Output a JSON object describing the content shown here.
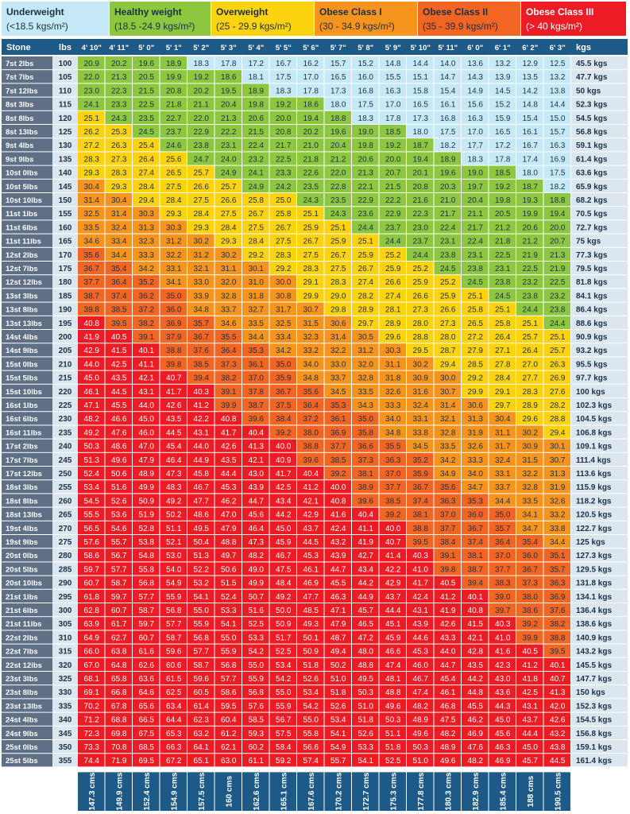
{
  "categories": [
    {
      "title": "Underweight",
      "range": "(<18.5 kgs/m²)",
      "color": "#c6e9f7",
      "text_color": "#1c2f45"
    },
    {
      "title": "Healthy weight",
      "range": "(18.5 -24.9 kgs/m²)",
      "color": "#8dc63f",
      "text_color": "#1c2f45"
    },
    {
      "title": "Overweight",
      "range": "(25 - 29.9 kgs/m²)",
      "color": "#fdd20e",
      "text_color": "#1c2f45"
    },
    {
      "title": "Obese Class I",
      "range": "(30 - 34.9 kgs/m²)",
      "color": "#f7941d",
      "text_color": "#1c2f45"
    },
    {
      "title": "Obese Class II",
      "range": "(35 - 39.9 kgs/m²)",
      "color": "#f26522",
      "text_color": "#1c2f45"
    },
    {
      "title": "Obese Class III",
      "range": "(> 40 kgs/m²)",
      "color": "#ed1c24",
      "text_color": "#ffffff"
    }
  ],
  "chart_data": {
    "type": "table",
    "header": {
      "stone": "Stone",
      "lbs": "lbs",
      "kgs": "kgs"
    },
    "heights_ft": [
      "4' 10\"",
      "4' 11\"",
      "5' 0\"",
      "5' 1\"",
      "5' 2\"",
      "5' 3\"",
      "5' 4\"",
      "5' 5\"",
      "5' 6\"",
      "5' 7\"",
      "5' 8\"",
      "5' 9\"",
      "5' 10\"",
      "5' 11\"",
      "6' 0\"",
      "6' 1\"",
      "6' 2\"",
      "6' 3\""
    ],
    "heights_cm": [
      "147.3 cms",
      "149.9 cms",
      "152.4 cms",
      "154.9 cms",
      "157.5 cms",
      "160 cms",
      "162.6 cms",
      "165.1 cms",
      "167.6 cms",
      "170.2 cms",
      "172.7 cms",
      "175.3 cms",
      "177.8 cms",
      "180.3 cms",
      "182.9 cms",
      "185.4 cms",
      "188 cms",
      "190.5 cms"
    ],
    "stone_labels": [
      "7st 2lbs",
      "7st 7lbs",
      "7st 12lbs",
      "8st 3lbs",
      "8st 8lbs",
      "8st 13lbs",
      "9st 4lbs",
      "9st 9lbs",
      "10st 0lbs",
      "10st 5lbs",
      "10st 10lbs",
      "11st 1lbs",
      "11st 6lbs",
      "11st 11lbs",
      "12st 2lbs",
      "12st 7lbs",
      "12st 12lbs",
      "13st 3lbs",
      "13st 8lbs",
      "13st 13lbs",
      "14st 4lbs",
      "14st 9lbs",
      "15st 0lbs",
      "15st 5lbs",
      "15st 10lbs",
      "16st 1lbs",
      "16st 6lbs",
      "16st 11lbs",
      "17st 2lbs",
      "17st 7lbs",
      "17st 12lbs",
      "18st 3lbs",
      "18st 8lbs",
      "18st 13lbs",
      "19st 4lbs",
      "19st 9lbs",
      "20st 0lbs",
      "20st 5lbs",
      "20st 10lbs",
      "21st 1lbs",
      "21st 6lbs",
      "21st 11lbs",
      "22st 2lbs",
      "22st 7lbs",
      "22st 12lbs",
      "23st 3lbs",
      "23st 8lbs",
      "23st 13lbs",
      "24st 4lbs",
      "24st 9lbs",
      "25st 0lbs",
      "25st 5lbs"
    ],
    "lbs": [
      100,
      105,
      110,
      115,
      120,
      125,
      130,
      135,
      140,
      145,
      150,
      155,
      160,
      165,
      170,
      175,
      180,
      185,
      190,
      195,
      200,
      205,
      210,
      215,
      220,
      225,
      230,
      235,
      240,
      245,
      250,
      255,
      260,
      265,
      270,
      275,
      280,
      285,
      290,
      295,
      300,
      305,
      310,
      315,
      320,
      325,
      330,
      335,
      340,
      345,
      350,
      355
    ],
    "kgs": [
      "45.5 kgs",
      "47.7 kgs",
      "50 kgs",
      "52.3 kgs",
      "54.5 kgs",
      "56.8 kgs",
      "59.1 kgs",
      "61.4 kgs",
      "63.6 kgs",
      "65.9 kgs",
      "68.2 kgs",
      "70.5 kgs",
      "72.7 kgs",
      "75 kgs",
      "77.3 kgs",
      "79.5 kgs",
      "81.8 kgs",
      "84.1 kgs",
      "86.4 kgs",
      "88.6 kgs",
      "90.9 kgs",
      "93.2 kgs",
      "95.5 kgs",
      "97.7 kgs",
      "100 kgs",
      "102.3 kgs",
      "104.5 kgs",
      "106.8 kgs",
      "109.1 kgs",
      "111.4 kgs",
      "113.6 kgs",
      "115.9 kgs",
      "118.2 kgs",
      "120.5 kgs",
      "122.7 kgs",
      "125 kgs",
      "127.3 kgs",
      "129.5 kgs",
      "131.8 kgs",
      "134.1 kgs",
      "136.4 kgs",
      "138.6 kgs",
      "140.9 kgs",
      "143.2 kgs",
      "145.5 kgs",
      "147.7 kgs",
      "150 kgs",
      "152.3 kgs",
      "154.5 kgs",
      "156.8 kgs",
      "159.1 kgs",
      "161.4 kgs"
    ],
    "bmi": [
      [
        20.9,
        20.2,
        19.6,
        18.9,
        18.3,
        17.8,
        17.2,
        16.7,
        16.2,
        15.7,
        15.2,
        14.8,
        14.4,
        14.0,
        13.6,
        13.2,
        12.9,
        12.5
      ],
      [
        22.0,
        21.3,
        20.5,
        19.9,
        19.2,
        18.6,
        18.1,
        17.5,
        17.0,
        16.5,
        16.0,
        15.5,
        15.1,
        14.7,
        14.3,
        13.9,
        13.5,
        13.2
      ],
      [
        23.0,
        22.3,
        21.5,
        20.8,
        20.2,
        19.5,
        18.9,
        18.3,
        17.8,
        17.3,
        16.8,
        16.3,
        15.8,
        15.4,
        14.9,
        14.5,
        14.2,
        13.8
      ],
      [
        24.1,
        23.3,
        22.5,
        21.8,
        21.1,
        20.4,
        19.8,
        19.2,
        18.6,
        18.0,
        17.5,
        17.0,
        16.5,
        16.1,
        15.6,
        15.2,
        14.8,
        14.4
      ],
      [
        25.1,
        24.3,
        23.5,
        22.7,
        22.0,
        21.3,
        20.6,
        20.0,
        19.4,
        18.8,
        18.3,
        17.8,
        17.3,
        16.8,
        16.3,
        15.9,
        15.4,
        15.0
      ],
      [
        26.2,
        25.3,
        24.5,
        23.7,
        22.9,
        22.2,
        21.5,
        20.8,
        20.2,
        19.6,
        19.0,
        18.5,
        18.0,
        17.5,
        17.0,
        16.5,
        16.1,
        15.7
      ],
      [
        27.2,
        26.3,
        25.4,
        24.6,
        23.8,
        23.1,
        22.4,
        21.7,
        21.0,
        20.4,
        19.8,
        19.2,
        18.7,
        18.2,
        17.7,
        17.2,
        16.7,
        16.3
      ],
      [
        28.3,
        27.3,
        26.4,
        25.6,
        24.7,
        24.0,
        23.2,
        22.5,
        21.8,
        21.2,
        20.6,
        20.0,
        19.4,
        18.9,
        18.3,
        17.8,
        17.4,
        16.9
      ],
      [
        29.3,
        28.3,
        27.4,
        26.5,
        25.7,
        24.9,
        24.1,
        23.3,
        22.6,
        22.0,
        21.3,
        20.7,
        20.1,
        19.6,
        19.0,
        18.5,
        18.0,
        17.5
      ],
      [
        30.4,
        29.3,
        28.4,
        27.5,
        26.6,
        25.7,
        24.9,
        24.2,
        23.5,
        22.8,
        22.1,
        21.5,
        20.8,
        20.3,
        19.7,
        19.2,
        18.7,
        18.2
      ],
      [
        31.4,
        30.4,
        29.4,
        28.4,
        27.5,
        26.6,
        25.8,
        25.0,
        24.3,
        23.5,
        22.9,
        22.2,
        21.6,
        21.0,
        20.4,
        19.8,
        19.3,
        18.8
      ],
      [
        32.5,
        31.4,
        30.3,
        29.3,
        28.4,
        27.5,
        26.7,
        25.8,
        25.1,
        24.3,
        23.6,
        22.9,
        22.3,
        21.7,
        21.1,
        20.5,
        19.9,
        19.4
      ],
      [
        33.5,
        32.4,
        31.3,
        30.3,
        29.3,
        28.4,
        27.5,
        26.7,
        25.9,
        25.1,
        24.4,
        23.7,
        23.0,
        22.4,
        21.7,
        21.2,
        20.6,
        20.0
      ],
      [
        34.6,
        33.4,
        32.3,
        31.2,
        30.2,
        29.3,
        28.4,
        27.5,
        26.7,
        25.9,
        25.1,
        24.4,
        23.7,
        23.1,
        22.4,
        21.8,
        21.2,
        20.7
      ],
      [
        35.6,
        34.4,
        33.3,
        32.2,
        31.2,
        30.2,
        29.2,
        28.3,
        27.5,
        26.7,
        25.9,
        25.2,
        24.4,
        23.8,
        23.1,
        22.5,
        21.9,
        21.3
      ],
      [
        36.7,
        35.4,
        34.2,
        33.1,
        32.1,
        31.1,
        30.1,
        29.2,
        28.3,
        27.5,
        26.7,
        25.9,
        25.2,
        24.5,
        23.8,
        23.1,
        22.5,
        21.9
      ],
      [
        37.7,
        36.4,
        35.2,
        34.1,
        33.0,
        32.0,
        31.0,
        30.0,
        29.1,
        28.3,
        27.4,
        26.6,
        25.9,
        25.2,
        24.5,
        23.8,
        23.2,
        22.5
      ],
      [
        38.7,
        37.4,
        36.2,
        35.0,
        33.9,
        32.8,
        31.8,
        30.8,
        29.9,
        29.0,
        28.2,
        27.4,
        26.6,
        25.9,
        25.1,
        24.5,
        23.8,
        23.2
      ],
      [
        39.8,
        38.5,
        37.2,
        36.0,
        34.8,
        33.7,
        32.7,
        31.7,
        30.7,
        29.8,
        28.9,
        28.1,
        27.3,
        26.6,
        25.8,
        25.1,
        24.4,
        23.8
      ],
      [
        40.8,
        39.5,
        38.2,
        36.9,
        35.7,
        34.6,
        33.5,
        32.5,
        31.5,
        30.6,
        29.7,
        28.9,
        28.0,
        27.3,
        26.5,
        25.8,
        25.1,
        24.4
      ],
      [
        41.9,
        40.5,
        39.1,
        37.9,
        36.7,
        35.5,
        34.4,
        33.4,
        32.3,
        31.4,
        30.5,
        29.6,
        28.8,
        28.0,
        27.2,
        26.4,
        25.7,
        25.1
      ],
      [
        42.9,
        41.5,
        40.1,
        38.8,
        37.6,
        36.4,
        35.3,
        34.2,
        33.2,
        32.2,
        31.2,
        30.3,
        29.5,
        28.7,
        27.9,
        27.1,
        26.4,
        25.7
      ],
      [
        44.0,
        42.5,
        41.1,
        39.8,
        38.5,
        37.3,
        36.1,
        35.0,
        34.0,
        33.0,
        32.0,
        31.1,
        30.2,
        29.4,
        28.5,
        27.8,
        27.0,
        26.3
      ],
      [
        45.0,
        43.5,
        42.1,
        40.7,
        39.4,
        38.2,
        37.0,
        35.9,
        34.8,
        33.7,
        32.8,
        31.8,
        30.9,
        30.0,
        29.2,
        28.4,
        27.7,
        26.9
      ],
      [
        46.1,
        44.5,
        43.1,
        41.7,
        40.3,
        39.1,
        37.8,
        36.7,
        35.6,
        34.5,
        33.5,
        32.6,
        31.6,
        30.7,
        29.9,
        29.1,
        28.3,
        27.6
      ],
      [
        47.1,
        45.5,
        44.0,
        42.6,
        41.2,
        39.9,
        38.7,
        37.5,
        36.4,
        35.3,
        34.3,
        33.3,
        32.4,
        31.4,
        30.6,
        29.7,
        28.9,
        28.2
      ],
      [
        48.2,
        46.6,
        45.0,
        43.5,
        42.2,
        40.8,
        39.6,
        38.4,
        37.2,
        36.1,
        35.0,
        34.0,
        33.1,
        32.1,
        31.3,
        30.4,
        29.6,
        28.8
      ],
      [
        49.2,
        47.6,
        46.0,
        44.5,
        43.1,
        41.7,
        40.4,
        39.2,
        38.0,
        36.9,
        35.8,
        34.8,
        33.8,
        32.8,
        31.9,
        31.1,
        30.2,
        29.4
      ],
      [
        50.3,
        48.6,
        47.0,
        45.4,
        44.0,
        42.6,
        41.3,
        40.0,
        38.8,
        37.7,
        36.6,
        35.5,
        34.5,
        33.5,
        32.6,
        31.7,
        30.9,
        30.1
      ],
      [
        51.3,
        49.6,
        47.9,
        46.4,
        44.9,
        43.5,
        42.1,
        40.9,
        39.6,
        38.5,
        37.3,
        36.3,
        35.2,
        34.2,
        33.3,
        32.4,
        31.5,
        30.7
      ],
      [
        52.4,
        50.6,
        48.9,
        47.3,
        45.8,
        44.4,
        43.0,
        41.7,
        40.4,
        39.2,
        38.1,
        37.0,
        35.9,
        34.9,
        34.0,
        33.1,
        32.2,
        31.3
      ],
      [
        53.4,
        51.6,
        49.9,
        48.3,
        46.7,
        45.3,
        43.9,
        42.5,
        41.2,
        40.0,
        38.9,
        37.7,
        36.7,
        35.6,
        34.7,
        33.7,
        32.8,
        31.9
      ],
      [
        54.5,
        52.6,
        50.9,
        49.2,
        47.7,
        46.2,
        44.7,
        43.4,
        42.1,
        40.8,
        39.6,
        38.5,
        37.4,
        36.3,
        35.3,
        34.4,
        33.5,
        32.6
      ],
      [
        55.5,
        53.6,
        51.9,
        50.2,
        48.6,
        47.0,
        45.6,
        44.2,
        42.9,
        41.6,
        40.4,
        39.2,
        38.1,
        37.0,
        36.0,
        35.0,
        34.1,
        33.2
      ],
      [
        56.5,
        54.6,
        52.8,
        51.1,
        49.5,
        47.9,
        46.4,
        45.0,
        43.7,
        42.4,
        41.1,
        40.0,
        38.8,
        37.7,
        36.7,
        35.7,
        34.7,
        33.8
      ],
      [
        57.6,
        55.7,
        53.8,
        52.1,
        50.4,
        48.8,
        47.3,
        45.9,
        44.5,
        43.2,
        41.9,
        40.7,
        39.5,
        38.4,
        37.4,
        36.4,
        35.4,
        34.4
      ],
      [
        58.6,
        56.7,
        54.8,
        53.0,
        51.3,
        49.7,
        48.2,
        46.7,
        45.3,
        43.9,
        42.7,
        41.4,
        40.3,
        39.1,
        38.1,
        37.0,
        36.0,
        35.1
      ],
      [
        59.7,
        57.7,
        55.8,
        54.0,
        52.2,
        50.6,
        49.0,
        47.5,
        46.1,
        44.7,
        43.4,
        42.2,
        41.0,
        39.8,
        38.7,
        37.7,
        36.7,
        35.7
      ],
      [
        60.7,
        58.7,
        56.8,
        54.9,
        53.2,
        51.5,
        49.9,
        48.4,
        46.9,
        45.5,
        44.2,
        42.9,
        41.7,
        40.5,
        39.4,
        38.3,
        37.3,
        36.3
      ],
      [
        61.8,
        59.7,
        57.7,
        55.9,
        54.1,
        52.4,
        50.7,
        49.2,
        47.7,
        46.3,
        44.9,
        43.7,
        42.4,
        41.2,
        40.1,
        39.0,
        38.0,
        36.9
      ],
      [
        62.8,
        60.7,
        58.7,
        56.8,
        55.0,
        53.3,
        51.6,
        50.0,
        48.5,
        47.1,
        45.7,
        44.4,
        43.1,
        41.9,
        40.8,
        39.7,
        38.6,
        37.6
      ],
      [
        63.9,
        61.7,
        59.7,
        57.7,
        55.9,
        54.1,
        52.5,
        50.9,
        49.3,
        47.9,
        46.5,
        45.1,
        43.9,
        42.6,
        41.5,
        40.3,
        39.2,
        38.2
      ],
      [
        64.9,
        62.7,
        60.7,
        58.7,
        56.8,
        55.0,
        53.3,
        51.7,
        50.1,
        48.7,
        47.2,
        45.9,
        44.6,
        43.3,
        42.1,
        41.0,
        39.9,
        38.8
      ],
      [
        66.0,
        63.8,
        61.6,
        59.6,
        57.7,
        55.9,
        54.2,
        52.5,
        50.9,
        49.4,
        48.0,
        46.6,
        45.3,
        44.0,
        42.8,
        41.6,
        40.5,
        39.5
      ],
      [
        67.0,
        64.8,
        62.6,
        60.6,
        58.7,
        56.8,
        55.0,
        53.4,
        51.8,
        50.2,
        48.8,
        47.4,
        46.0,
        44.7,
        43.5,
        42.3,
        41.2,
        40.1
      ],
      [
        68.1,
        65.8,
        63.6,
        61.5,
        59.6,
        57.7,
        55.9,
        54.2,
        52.6,
        51.0,
        49.5,
        48.1,
        46.7,
        45.4,
        44.2,
        43.0,
        41.8,
        40.7
      ],
      [
        69.1,
        66.8,
        64.6,
        62.5,
        60.5,
        58.6,
        56.8,
        55.0,
        53.4,
        51.8,
        50.3,
        48.8,
        47.4,
        46.1,
        44.8,
        43.6,
        42.5,
        41.3
      ],
      [
        70.2,
        67.8,
        65.6,
        63.4,
        61.4,
        59.5,
        57.6,
        55.9,
        54.2,
        52.6,
        51.0,
        49.6,
        48.2,
        46.8,
        45.5,
        44.3,
        43.1,
        42.0
      ],
      [
        71.2,
        68.8,
        66.5,
        64.4,
        62.3,
        60.4,
        58.5,
        56.7,
        55.0,
        53.4,
        51.8,
        50.3,
        48.9,
        47.5,
        46.2,
        45.0,
        43.7,
        42.6
      ],
      [
        72.3,
        69.8,
        67.5,
        65.3,
        63.2,
        61.2,
        59.3,
        57.5,
        55.8,
        54.1,
        52.6,
        51.1,
        49.6,
        48.2,
        46.9,
        45.6,
        44.4,
        43.2
      ],
      [
        73.3,
        70.8,
        68.5,
        66.3,
        64.1,
        62.1,
        60.2,
        58.4,
        56.6,
        54.9,
        53.3,
        51.8,
        50.3,
        48.9,
        47.6,
        46.3,
        45.0,
        43.8
      ],
      [
        74.4,
        71.9,
        69.5,
        67.2,
        65.1,
        63.0,
        61.1,
        59.2,
        57.4,
        55.7,
        54.1,
        52.5,
        51.0,
        49.6,
        48.2,
        46.9,
        45.7,
        44.5
      ]
    ]
  }
}
